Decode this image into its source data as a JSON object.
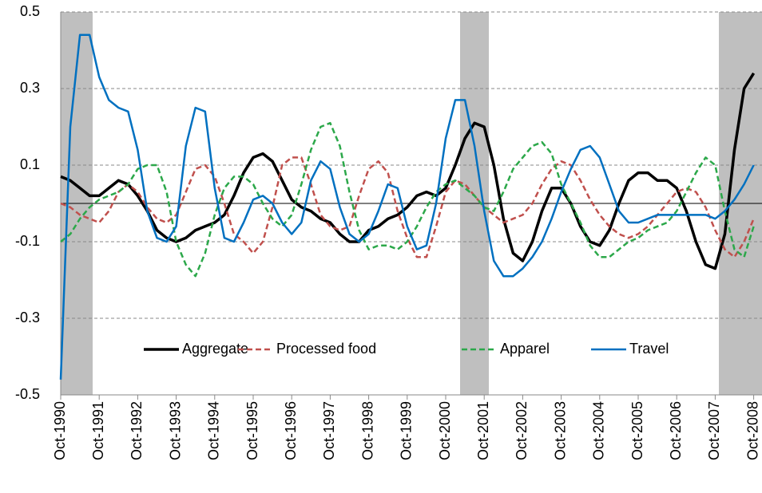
{
  "chart_data": {
    "type": "line",
    "categories": [
      "Oct-1990",
      null,
      null,
      null,
      "Oct-1991",
      null,
      null,
      null,
      "Oct-1992",
      null,
      null,
      null,
      "Oct-1993",
      null,
      null,
      null,
      "Oct-1994",
      null,
      null,
      null,
      "Oct-1995",
      null,
      null,
      null,
      "Oct-1996",
      null,
      null,
      null,
      "Oct-1997",
      null,
      null,
      null,
      "Oct-1998",
      null,
      null,
      null,
      "Oct-1999",
      null,
      null,
      null,
      "Oct-2000",
      null,
      null,
      null,
      "Oct-2001",
      null,
      null,
      null,
      "Oct-2002",
      null,
      null,
      null,
      "Oct-2003",
      null,
      null,
      null,
      "Oct-2004",
      null,
      null,
      null,
      "Oct-2005",
      null,
      null,
      null,
      "Oct-2006",
      null,
      null,
      null,
      "Oct-2007",
      null,
      null,
      null,
      "Oct-2008"
    ],
    "series": [
      {
        "name": "Aggregate",
        "color": "#000000",
        "dash": false,
        "values": [
          0.07,
          0.06,
          0.04,
          0.02,
          0.02,
          0.04,
          0.06,
          0.05,
          0.02,
          -0.02,
          -0.07,
          -0.09,
          -0.1,
          -0.09,
          -0.07,
          -0.06,
          -0.05,
          -0.03,
          0.02,
          0.08,
          0.12,
          0.13,
          0.11,
          0.06,
          0.01,
          -0.01,
          -0.02,
          -0.04,
          -0.05,
          -0.08,
          -0.1,
          -0.1,
          -0.07,
          -0.06,
          -0.04,
          -0.03,
          -0.01,
          0.02,
          0.03,
          0.02,
          0.04,
          0.1,
          0.17,
          0.21,
          0.2,
          0.1,
          -0.04,
          -0.13,
          -0.15,
          -0.1,
          -0.02,
          0.04,
          0.04,
          0.0,
          -0.06,
          -0.1,
          -0.11,
          -0.07,
          0.0,
          0.06,
          0.08,
          0.08,
          0.06,
          0.06,
          0.04,
          -0.02,
          -0.1,
          -0.16,
          -0.17,
          -0.08,
          0.14,
          0.3,
          0.34
        ]
      },
      {
        "name": "Processed food",
        "color": "#c0504d",
        "dash": true,
        "values": [
          0.0,
          -0.01,
          -0.03,
          -0.04,
          -0.05,
          -0.02,
          0.03,
          0.05,
          0.03,
          -0.01,
          -0.04,
          -0.05,
          -0.03,
          0.03,
          0.09,
          0.1,
          0.07,
          0.0,
          -0.08,
          -0.1,
          -0.13,
          -0.1,
          -0.01,
          0.1,
          0.12,
          0.12,
          0.05,
          -0.03,
          -0.06,
          -0.07,
          -0.06,
          0.02,
          0.09,
          0.11,
          0.08,
          -0.02,
          -0.09,
          -0.14,
          -0.14,
          -0.06,
          0.03,
          0.06,
          0.05,
          0.02,
          -0.01,
          -0.03,
          -0.05,
          -0.04,
          -0.03,
          0.0,
          0.05,
          0.09,
          0.11,
          0.1,
          0.06,
          0.01,
          -0.03,
          -0.06,
          -0.08,
          -0.09,
          -0.08,
          -0.06,
          -0.03,
          0.0,
          0.03,
          0.04,
          0.03,
          -0.01,
          -0.07,
          -0.12,
          -0.14,
          -0.1,
          -0.04
        ]
      },
      {
        "name": "Apparel",
        "color": "#2ca84a",
        "dash": true,
        "values": [
          -0.1,
          -0.08,
          -0.04,
          -0.01,
          0.01,
          0.02,
          0.03,
          0.05,
          0.09,
          0.1,
          0.1,
          0.03,
          -0.1,
          -0.16,
          -0.19,
          -0.13,
          -0.03,
          0.04,
          0.07,
          0.07,
          0.05,
          0.0,
          -0.04,
          -0.06,
          -0.03,
          0.05,
          0.14,
          0.2,
          0.21,
          0.15,
          0.03,
          -0.07,
          -0.12,
          -0.11,
          -0.11,
          -0.12,
          -0.1,
          -0.06,
          -0.01,
          0.03,
          0.05,
          0.06,
          0.04,
          0.02,
          -0.01,
          -0.02,
          0.03,
          0.09,
          0.12,
          0.15,
          0.16,
          0.13,
          0.05,
          0.0,
          -0.05,
          -0.11,
          -0.14,
          -0.14,
          -0.12,
          -0.1,
          -0.09,
          -0.07,
          -0.06,
          -0.05,
          -0.02,
          0.03,
          0.08,
          0.12,
          0.1,
          -0.02,
          -0.12,
          -0.14,
          -0.06
        ]
      },
      {
        "name": "Travel",
        "color": "#0070c0",
        "dash": false,
        "values": [
          -0.46,
          0.2,
          0.44,
          0.44,
          0.33,
          0.27,
          0.25,
          0.24,
          0.14,
          -0.02,
          -0.09,
          -0.1,
          -0.06,
          0.15,
          0.25,
          0.24,
          0.04,
          -0.09,
          -0.1,
          -0.05,
          0.01,
          0.02,
          0.0,
          -0.05,
          -0.08,
          -0.05,
          0.06,
          0.11,
          0.09,
          -0.01,
          -0.08,
          -0.1,
          -0.08,
          -0.02,
          0.05,
          0.04,
          -0.06,
          -0.12,
          -0.11,
          0.0,
          0.17,
          0.27,
          0.27,
          0.15,
          -0.02,
          -0.15,
          -0.19,
          -0.19,
          -0.17,
          -0.14,
          -0.1,
          -0.04,
          0.03,
          0.09,
          0.14,
          0.15,
          0.12,
          0.05,
          -0.02,
          -0.05,
          -0.05,
          -0.04,
          -0.03,
          -0.03,
          -0.03,
          -0.03,
          -0.03,
          -0.03,
          -0.04,
          -0.02,
          0.01,
          0.05,
          0.1
        ]
      }
    ],
    "ylim": [
      -0.5,
      0.5
    ],
    "yticks": [
      -0.5,
      -0.3,
      -0.1,
      0.1,
      0.3,
      0.5
    ],
    "grid": true
  }
}
